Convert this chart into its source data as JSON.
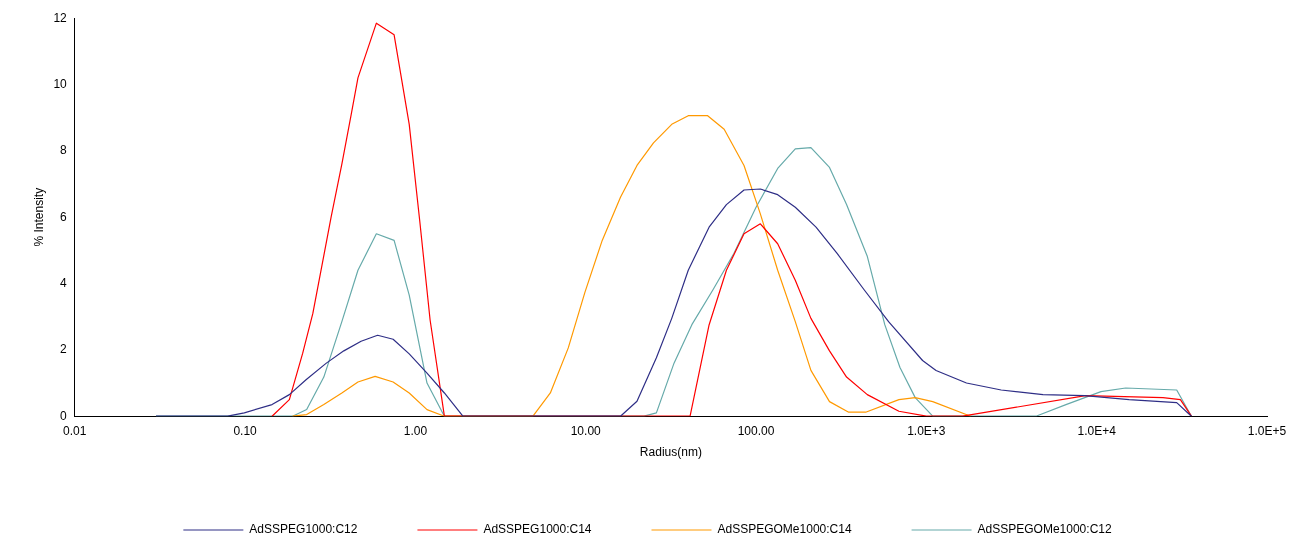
{
  "chart_data": {
    "type": "line",
    "xlabel": "Radius(nm)",
    "ylabel": "% Intensity",
    "log": "x",
    "xlim": [
      0.01,
      100000
    ],
    "xticks": [
      {
        "value": 0.01,
        "label": "0.01"
      },
      {
        "value": 0.1,
        "label": "0.10"
      },
      {
        "value": 1,
        "label": "1.00"
      },
      {
        "value": 10,
        "label": "10.00"
      },
      {
        "value": 100,
        "label": "100.00"
      },
      {
        "value": 1000,
        "label": "1.0E+3"
      },
      {
        "value": 10000,
        "label": "1.0E+4"
      },
      {
        "value": 100000,
        "label": "1.0E+5"
      }
    ],
    "ylim": [
      0,
      12
    ],
    "yticks": [
      0,
      2,
      4,
      6,
      8,
      10,
      12
    ],
    "grid": false,
    "legend": "bottom",
    "marker": "none",
    "line_style": "solid",
    "series": [
      {
        "name": "AdSSPEG1000:C12",
        "color": "#2e2e86",
        "x": [
          0.03,
          0.079,
          0.099,
          0.144,
          0.182,
          0.228,
          0.3,
          0.38,
          0.48,
          0.6,
          0.74,
          0.92,
          1.17,
          1.48,
          1.9,
          16,
          20,
          26,
          32,
          40,
          53,
          67,
          85,
          106,
          134,
          170,
          225,
          300,
          430,
          600,
          950,
          1140,
          1720,
          2750,
          4840,
          8500,
          15500,
          29500,
          36000
        ],
        "values": [
          0,
          0,
          0.1,
          0.35,
          0.65,
          1.1,
          1.6,
          1.97,
          2.26,
          2.44,
          2.32,
          1.88,
          1.3,
          0.7,
          0,
          0,
          0.45,
          1.76,
          2.95,
          4.4,
          5.7,
          6.38,
          6.82,
          6.85,
          6.68,
          6.3,
          5.7,
          4.9,
          3.82,
          2.85,
          1.68,
          1.38,
          1,
          0.79,
          0.65,
          0.62,
          0.5,
          0.41,
          0
        ]
      },
      {
        "name": "AdSSPEG1000:C14",
        "color": "#ff0000",
        "x": [
          0.144,
          0.182,
          0.218,
          0.25,
          0.32,
          0.37,
          0.42,
          0.46,
          0.59,
          0.75,
          0.92,
          1.06,
          1.22,
          1.48,
          41,
          53,
          67,
          85,
          106,
          134,
          170,
          210,
          270,
          340,
          450,
          690,
          1000,
          1630,
          8600,
          24500,
          31000,
          36000
        ],
        "values": [
          0,
          0.5,
          1.9,
          3.1,
          6,
          7.6,
          9.1,
          10.2,
          11.85,
          11.5,
          8.8,
          5.9,
          2.9,
          0,
          0,
          2.75,
          4.4,
          5.5,
          5.8,
          5.2,
          4.1,
          2.95,
          1.97,
          1.18,
          0.65,
          0.15,
          0,
          0,
          0.62,
          0.56,
          0.5,
          0
        ]
      },
      {
        "name": "AdSSPEGOMe1000:C14",
        "color": "#ff9900",
        "x": [
          0.19,
          0.23,
          0.29,
          0.37,
          0.46,
          0.58,
          0.74,
          0.92,
          1.17,
          1.48,
          4.9,
          6.2,
          7.9,
          9.9,
          12.5,
          16,
          20,
          25,
          32,
          40,
          52,
          65,
          85,
          106,
          134,
          170,
          210,
          270,
          350,
          440,
          690,
          860,
          1090,
          1820
        ],
        "values": [
          0,
          0.05,
          0.35,
          0.7,
          1.03,
          1.2,
          1.03,
          0.7,
          0.2,
          0,
          0,
          0.7,
          2.06,
          3.74,
          5.3,
          6.6,
          7.56,
          8.24,
          8.8,
          9.06,
          9.06,
          8.65,
          7.56,
          6.1,
          4.4,
          2.85,
          1.38,
          0.44,
          0.12,
          0.12,
          0.5,
          0.56,
          0.44,
          0
        ]
      },
      {
        "name": "AdSSPEGOMe1000:C12",
        "color": "#66aaaa",
        "x": [
          0.03,
          0.19,
          0.23,
          0.29,
          0.37,
          0.46,
          0.59,
          0.75,
          0.92,
          1.17,
          1.48,
          22,
          26,
          33,
          42,
          56,
          74,
          100,
          134,
          170,
          210,
          270,
          340,
          450,
          570,
          700,
          860,
          1090,
          4400,
          6600,
          10600,
          14800,
          29500,
          36000
        ],
        "values": [
          0,
          0,
          0.2,
          1.18,
          2.85,
          4.4,
          5.5,
          5.3,
          3.65,
          1,
          0,
          0,
          0.1,
          1.6,
          2.76,
          3.82,
          4.9,
          6.3,
          7.47,
          8.06,
          8.1,
          7.5,
          6.38,
          4.82,
          2.76,
          1.47,
          0.56,
          0,
          0,
          0.35,
          0.74,
          0.85,
          0.79,
          0
        ]
      }
    ]
  }
}
